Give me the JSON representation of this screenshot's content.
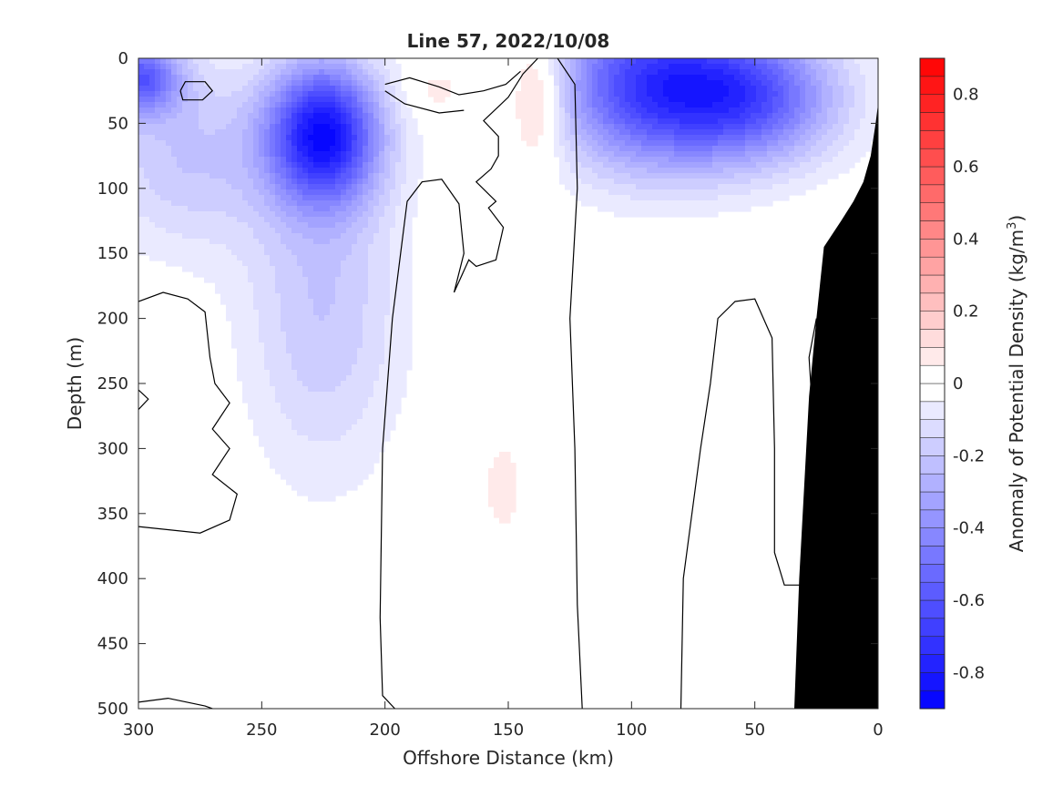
{
  "chart_data": {
    "type": "heatmap",
    "title": "Line 57, 2022/10/08",
    "xlabel": "Offshore Distance (km)",
    "ylabel": "Depth (m)",
    "colorbar_label_main": "Anomaly of Potential Density (kg/m",
    "colorbar_label_sup": "3",
    "colorbar_label_end": ")",
    "xlim": [
      300,
      0
    ],
    "ylim": [
      500,
      0
    ],
    "x_reversed": true,
    "y_reversed": true,
    "xticks": [
      300,
      250,
      200,
      150,
      100,
      50,
      0
    ],
    "xtick_labels": [
      "300",
      "250",
      "200",
      "150",
      "100",
      "50",
      "0"
    ],
    "yticks": [
      0,
      50,
      100,
      150,
      200,
      250,
      300,
      350,
      400,
      450,
      500
    ],
    "ytick_labels": [
      "0",
      "50",
      "100",
      "150",
      "200",
      "250",
      "300",
      "350",
      "400",
      "450",
      "500"
    ],
    "clim": [
      -0.9,
      0.9
    ],
    "colorbar_ticks": [
      0.8,
      0.6,
      0.4,
      0.2,
      0,
      -0.2,
      -0.4,
      -0.6,
      -0.8
    ],
    "colorbar_tick_labels": [
      "0.8",
      "0.6",
      "0.4",
      "0.2",
      "0",
      "-0.2",
      "-0.4",
      "-0.6",
      "-0.8"
    ],
    "colorbar_levels": 36,
    "colors": {
      "negative": "#0000ff",
      "positive": "#ff0000",
      "zero": "#ffffff",
      "bathymetry": "#000000"
    },
    "anomaly_features": [
      {
        "x": 300,
        "y": 15,
        "sx": 12,
        "sy": 20,
        "value": -0.55
      },
      {
        "x": 225,
        "y": 58,
        "sx": 16,
        "sy": 38,
        "value": -0.8
      },
      {
        "x": 225,
        "y": 190,
        "sx": 22,
        "sy": 90,
        "value": -0.2
      },
      {
        "x": 92,
        "y": 20,
        "sx": 28,
        "sy": 45,
        "value": -0.65
      },
      {
        "x": 50,
        "y": 30,
        "sx": 25,
        "sy": 35,
        "value": -0.5
      },
      {
        "x": 280,
        "y": 75,
        "sx": 25,
        "sy": 50,
        "value": -0.2
      },
      {
        "x": 138,
        "y": 30,
        "sx": 8,
        "sy": 35,
        "value": 0.25
      },
      {
        "x": 180,
        "y": 25,
        "sx": 10,
        "sy": 15,
        "value": 0.08
      },
      {
        "x": 152,
        "y": 330,
        "sx": 10,
        "sy": 45,
        "value": 0.06
      }
    ],
    "zero_contour_lines": [
      [
        [
          300,
          187
        ],
        [
          290,
          180
        ],
        [
          280,
          185
        ],
        [
          273,
          195
        ],
        [
          271,
          230
        ],
        [
          269,
          250
        ],
        [
          263,
          265
        ],
        [
          270,
          285
        ],
        [
          263,
          300
        ],
        [
          270,
          320
        ],
        [
          260,
          335
        ],
        [
          263,
          355
        ],
        [
          275,
          365
        ],
        [
          300,
          360
        ]
      ],
      [
        [
          300,
          495
        ],
        [
          288,
          492
        ],
        [
          273,
          498
        ],
        [
          270,
          500
        ]
      ],
      [
        [
          300,
          255
        ],
        [
          296,
          262
        ],
        [
          300,
          270
        ]
      ],
      [
        [
          283,
          25
        ],
        [
          281,
          18
        ],
        [
          273,
          18
        ],
        [
          270,
          25
        ],
        [
          274,
          32
        ],
        [
          282,
          32
        ],
        [
          283,
          25
        ]
      ],
      [
        [
          196,
          500
        ],
        [
          201,
          490
        ],
        [
          202,
          430
        ],
        [
          201,
          300
        ],
        [
          197,
          200
        ],
        [
          191,
          110
        ],
        [
          185,
          95
        ],
        [
          177,
          93
        ],
        [
          170,
          112
        ],
        [
          168,
          150
        ],
        [
          172,
          180
        ],
        [
          166,
          155
        ],
        [
          163,
          160
        ],
        [
          155,
          155
        ],
        [
          152,
          130
        ],
        [
          158,
          115
        ],
        [
          155,
          110
        ],
        [
          163,
          95
        ],
        [
          157,
          85
        ],
        [
          154,
          75
        ],
        [
          154,
          60
        ],
        [
          160,
          48
        ],
        [
          150,
          30
        ],
        [
          144,
          12
        ],
        [
          138,
          0
        ]
      ],
      [
        [
          130,
          0
        ],
        [
          123,
          20
        ],
        [
          122,
          100
        ],
        [
          125,
          200
        ],
        [
          123,
          300
        ],
        [
          122,
          420
        ],
        [
          120,
          500
        ]
      ],
      [
        [
          200,
          20
        ],
        [
          190,
          15
        ],
        [
          178,
          22
        ],
        [
          170,
          28
        ],
        [
          160,
          25
        ],
        [
          151,
          20
        ],
        [
          145,
          10
        ]
      ],
      [
        [
          200,
          25
        ],
        [
          192,
          35
        ],
        [
          178,
          42
        ],
        [
          168,
          40
        ]
      ],
      [
        [
          80,
          500
        ],
        [
          79,
          400
        ],
        [
          72,
          300
        ],
        [
          68,
          250
        ],
        [
          65,
          200
        ],
        [
          58,
          187
        ],
        [
          50,
          185
        ],
        [
          43,
          215
        ],
        [
          42,
          300
        ],
        [
          42,
          380
        ],
        [
          38,
          405
        ],
        [
          30,
          405
        ]
      ],
      [
        [
          25,
          200
        ],
        [
          28,
          230
        ],
        [
          27,
          260
        ],
        [
          23,
          268
        ]
      ]
    ],
    "bathymetry": [
      [
        34,
        500
      ],
      [
        32,
        400
      ],
      [
        30,
        330
      ],
      [
        28,
        260
      ],
      [
        25,
        200
      ],
      [
        22,
        145
      ],
      [
        15,
        125
      ],
      [
        10,
        110
      ],
      [
        6,
        95
      ],
      [
        3,
        75
      ],
      [
        1,
        50
      ],
      [
        0,
        35
      ]
    ]
  }
}
